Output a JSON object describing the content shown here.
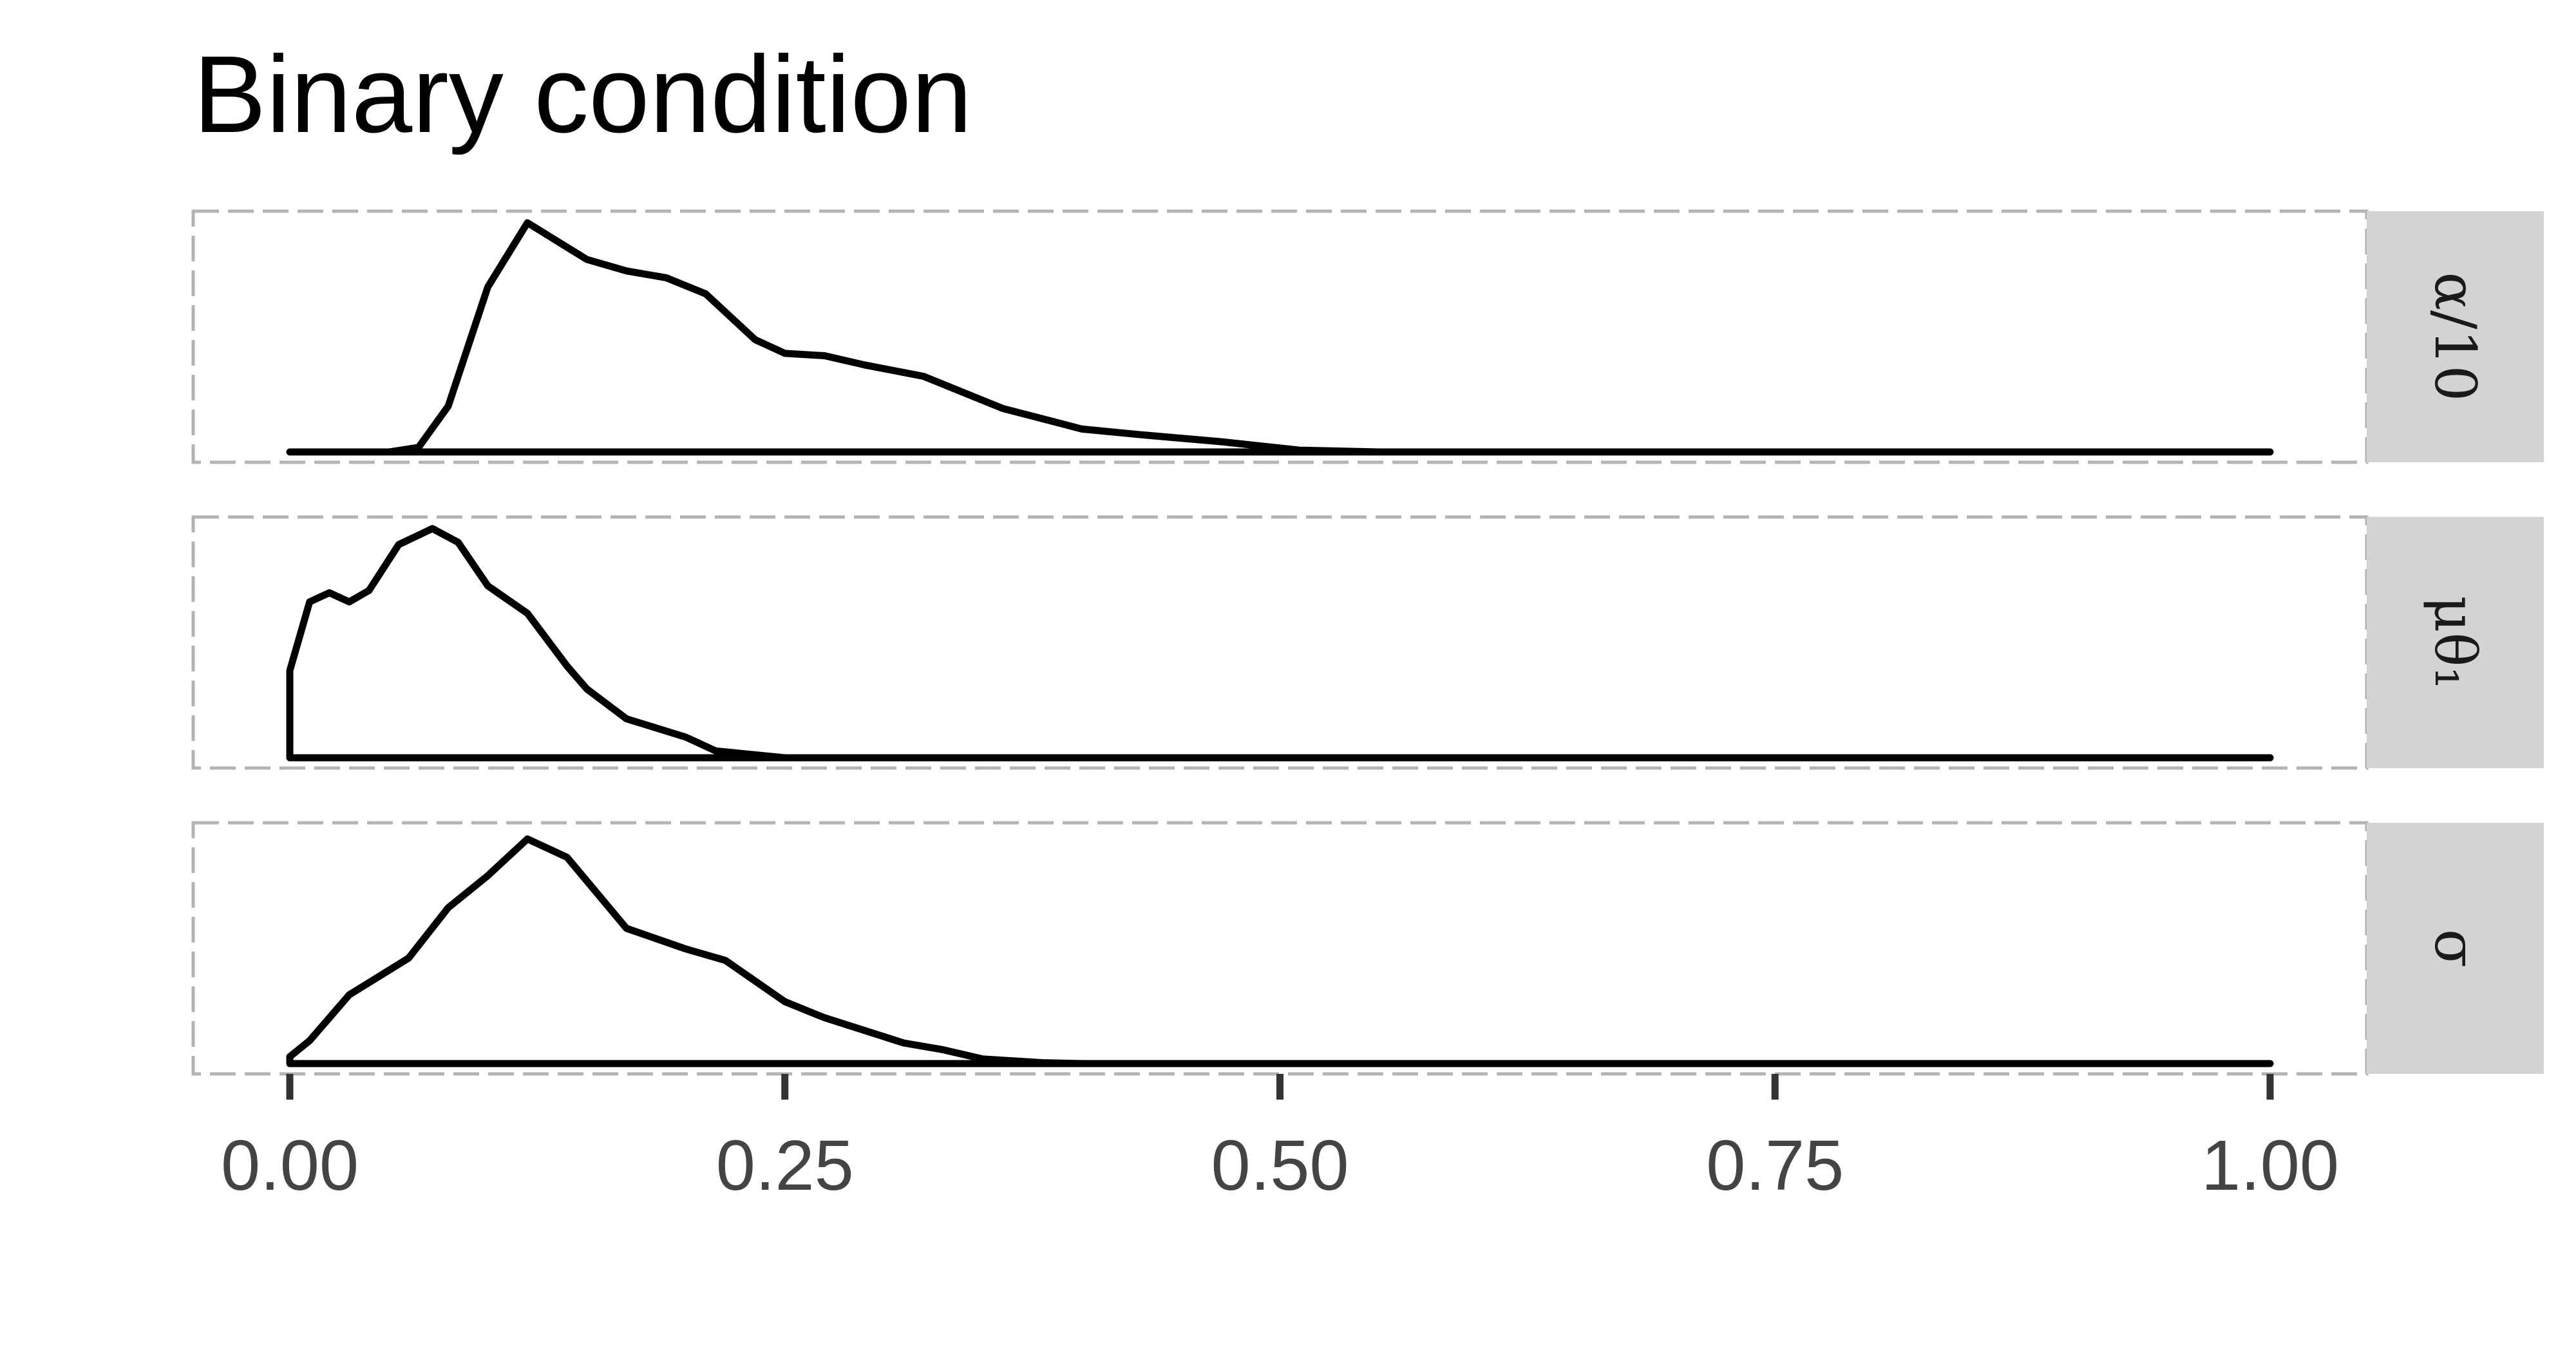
{
  "chart_data": {
    "type": "area",
    "title": "Binary condition",
    "xlabel": "",
    "ylabel": "",
    "xlim": [
      0,
      1
    ],
    "x_ticks": [
      0,
      0.25,
      0.5,
      0.75,
      1
    ],
    "x_tick_labels": [
      "0.00",
      "0.25",
      "0.50",
      "0.75",
      "1.00"
    ],
    "grid": true,
    "facets": [
      {
        "strip_label": "α/10",
        "color": "#000000",
        "x": [
          0.0,
          0.05,
          0.065,
          0.08,
          0.1,
          0.12,
          0.135,
          0.15,
          0.17,
          0.19,
          0.21,
          0.235,
          0.25,
          0.27,
          0.29,
          0.32,
          0.36,
          0.4,
          0.43,
          0.47,
          0.51,
          0.55,
          1.0
        ],
        "y": [
          0.0,
          0.0,
          0.02,
          0.2,
          0.72,
          1.0,
          0.92,
          0.84,
          0.79,
          0.76,
          0.69,
          0.49,
          0.43,
          0.42,
          0.38,
          0.33,
          0.19,
          0.1,
          0.075,
          0.045,
          0.008,
          0.0,
          0.0
        ]
      },
      {
        "strip_label": "μθ₁",
        "color": "#000000",
        "x": [
          0.0,
          0.0,
          0.01,
          0.02,
          0.03,
          0.04,
          0.055,
          0.072,
          0.085,
          0.1,
          0.12,
          0.14,
          0.15,
          0.17,
          0.185,
          0.2,
          0.215,
          0.25,
          1.0
        ],
        "y": [
          0.0,
          0.38,
          0.68,
          0.72,
          0.68,
          0.73,
          0.93,
          1.0,
          0.94,
          0.75,
          0.63,
          0.4,
          0.3,
          0.17,
          0.13,
          0.09,
          0.03,
          0.0,
          0.0
        ]
      },
      {
        "strip_label": "σ",
        "color": "#000000",
        "x": [
          0.0,
          0.01,
          0.03,
          0.06,
          0.08,
          0.1,
          0.12,
          0.14,
          0.17,
          0.2,
          0.22,
          0.25,
          0.27,
          0.31,
          0.33,
          0.35,
          0.38,
          0.4,
          1.0
        ],
        "y": [
          0.03,
          0.1,
          0.3,
          0.46,
          0.68,
          0.82,
          0.98,
          0.9,
          0.59,
          0.5,
          0.45,
          0.27,
          0.2,
          0.09,
          0.06,
          0.02,
          0.004,
          0.0,
          0.0
        ]
      }
    ]
  }
}
